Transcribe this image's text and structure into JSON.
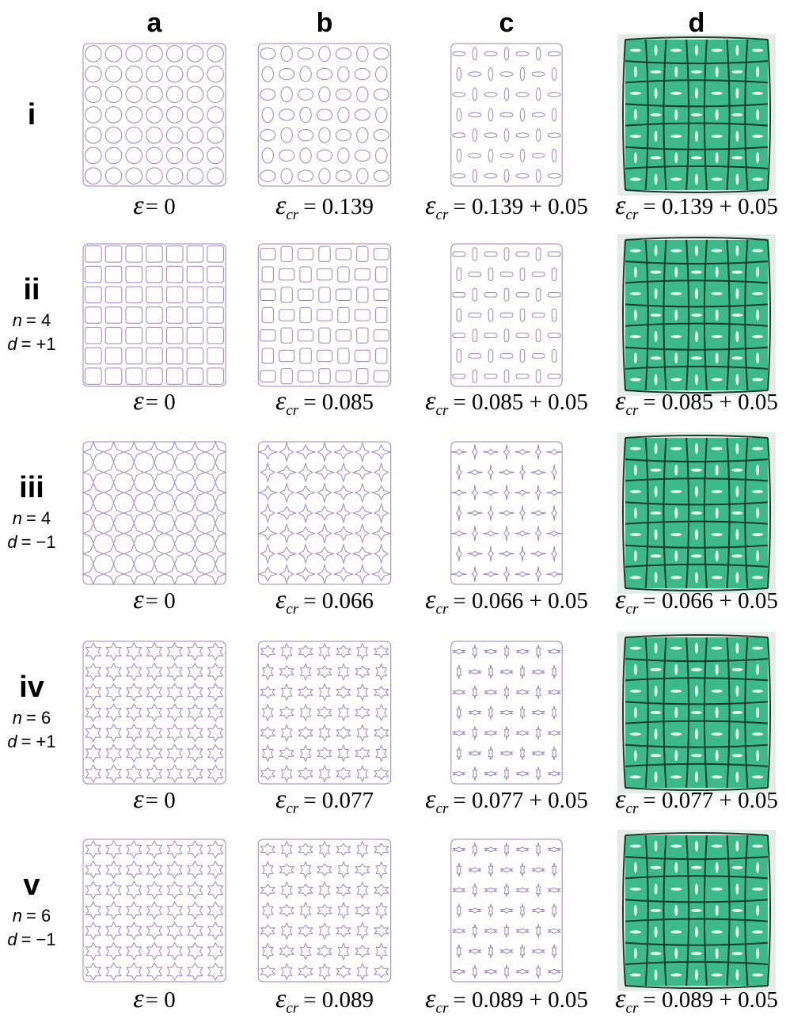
{
  "columns": [
    "a",
    "b",
    "c",
    "d"
  ],
  "rows": [
    {
      "label": "i",
      "captions": [
        {
          "symbol": "ε",
          "text": "= 0"
        },
        {
          "symbol": "ε",
          "sub": "cr",
          "text": "= 0.139"
        },
        {
          "symbol": "ε",
          "sub": "cr",
          "text": "= 0.139 + 0.05"
        },
        {
          "symbol": "ε",
          "sub": "cr",
          "text": "= 0.139 + 0.05"
        }
      ]
    },
    {
      "label": "ii",
      "params": [
        {
          "var": "n",
          "text": "= 4"
        },
        {
          "var": "d",
          "text": "= +1"
        }
      ],
      "captions": [
        {
          "symbol": "ε",
          "text": "= 0"
        },
        {
          "symbol": "ε",
          "sub": "cr",
          "text": "= 0.085"
        },
        {
          "symbol": "ε",
          "sub": "cr",
          "text": "= 0.085 + 0.05"
        },
        {
          "symbol": "ε",
          "sub": "cr",
          "text": "= 0.085 + 0.05"
        }
      ]
    },
    {
      "label": "iii",
      "params": [
        {
          "var": "n",
          "text": "= 4"
        },
        {
          "var": "d",
          "text": "= −1"
        }
      ],
      "captions": [
        {
          "symbol": "ε",
          "text": "= 0"
        },
        {
          "symbol": "ε",
          "sub": "cr",
          "text": "= 0.066"
        },
        {
          "symbol": "ε",
          "sub": "cr",
          "text": "= 0.066 + 0.05"
        },
        {
          "symbol": "ε",
          "sub": "cr",
          "text": "= 0.066 + 0.05"
        }
      ]
    },
    {
      "label": "iv",
      "params": [
        {
          "var": "n",
          "text": "= 6"
        },
        {
          "var": "d",
          "text": "= +1"
        }
      ],
      "captions": [
        {
          "symbol": "ε",
          "text": "= 0"
        },
        {
          "symbol": "ε",
          "sub": "cr",
          "text": "= 0.077"
        },
        {
          "symbol": "ε",
          "sub": "cr",
          "text": "= 0.077 + 0.05"
        },
        {
          "symbol": "ε",
          "sub": "cr",
          "text": "= 0.077 + 0.05"
        }
      ]
    },
    {
      "label": "v",
      "params": [
        {
          "var": "n",
          "text": "= 6"
        },
        {
          "var": "d",
          "text": "= −1"
        }
      ],
      "captions": [
        {
          "symbol": "ε",
          "text": "= 0"
        },
        {
          "symbol": "ε",
          "sub": "cr",
          "text": "= 0.089"
        },
        {
          "symbol": "ε",
          "sub": "cr",
          "text": "= 0.089 + 0.05"
        },
        {
          "symbol": "ε",
          "sub": "cr",
          "text": "= 0.089 + 0.05"
        }
      ]
    }
  ]
}
